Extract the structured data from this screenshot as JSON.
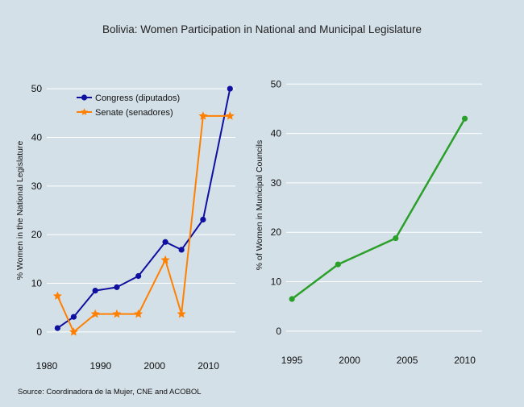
{
  "title": "Bolivia: Women Participation in National and Municipal Legislature",
  "source": "Source: Coordinadora de la Mujer, CNE and ACOBOL",
  "colors": {
    "background": "#d4e0e8",
    "grid": "#ffffff",
    "congress": "#1010a0",
    "senate": "#ff8000",
    "municipal": "#2aa02a"
  },
  "chart_data": [
    {
      "type": "line",
      "title": "",
      "xlabel": "",
      "ylabel": "% Women in the National Legislature",
      "xlim": [
        1980,
        2015
      ],
      "ylim": [
        -2,
        52
      ],
      "xticks": [
        1980,
        1990,
        2000,
        2010
      ],
      "yticks": [
        0,
        10,
        20,
        30,
        40,
        50
      ],
      "grid": "horizontal",
      "legend_position": "top-left",
      "series": [
        {
          "name": "Congress (diputados)",
          "color": "#1010a0",
          "marker": "circle",
          "x": [
            1982,
            1985,
            1989,
            1993,
            1997,
            2002,
            2005,
            2009,
            2014
          ],
          "y": [
            0.8,
            3.1,
            8.5,
            9.2,
            11.5,
            18.5,
            16.9,
            23.1,
            50.0
          ]
        },
        {
          "name": "Senate (senadores)",
          "color": "#ff8000",
          "marker": "star",
          "x": [
            1982,
            1985,
            1989,
            1993,
            1997,
            2002,
            2005,
            2009,
            2014
          ],
          "y": [
            7.4,
            0.0,
            3.7,
            3.7,
            3.7,
            14.8,
            3.7,
            44.4,
            44.4
          ]
        }
      ]
    },
    {
      "type": "line",
      "title": "",
      "xlabel": "",
      "ylabel": "% of Women in Municipal Councils",
      "xlim": [
        1994.5,
        2011.5
      ],
      "ylim": [
        -1,
        52
      ],
      "xticks": [
        1995,
        2000,
        2005,
        2010
      ],
      "yticks": [
        0,
        10,
        20,
        30,
        40,
        50
      ],
      "grid": "horizontal",
      "series": [
        {
          "color": "#2aa02a",
          "marker": "circle",
          "x": [
            1995,
            1999,
            2004,
            2010
          ],
          "y": [
            6.5,
            13.5,
            18.8,
            43.0
          ]
        }
      ]
    }
  ]
}
